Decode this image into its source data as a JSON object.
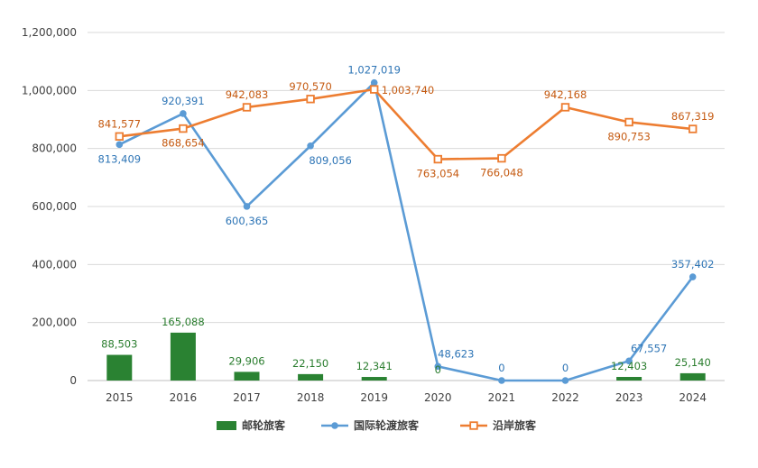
{
  "chart_data": {
    "type": "bar+line",
    "categories": [
      "2015",
      "2016",
      "2017",
      "2018",
      "2019",
      "2020",
      "2021",
      "2022",
      "2023",
      "2024"
    ],
    "ylim": [
      0,
      1200000
    ],
    "yticks": [
      0,
      200000,
      400000,
      600000,
      800000,
      1000000,
      1200000
    ],
    "ytick_labels": [
      "0",
      "200,000",
      "400,000",
      "600,000",
      "800,000",
      "1,000,000",
      "1,200,000"
    ],
    "grid": "horizontal",
    "legend_position": "bottom",
    "colors": {
      "bar": "#2a8232",
      "line1": "#5b9bd5",
      "line2": "#ed7d31",
      "label1": "#2e75b6",
      "label2": "#c55a11",
      "label_bar": "#2a7d2e"
    },
    "series": [
      {
        "name": "邮轮旅客",
        "type": "bar",
        "values": [
          88503,
          165088,
          29906,
          22150,
          12341,
          0,
          0,
          0,
          12403,
          25140
        ],
        "labels": [
          "88,503",
          "165,088",
          "29,906",
          "22,150",
          "12,341",
          "0",
          "",
          "",
          "12,403",
          "25,140"
        ]
      },
      {
        "name": "国际轮渡旅客",
        "type": "line",
        "values": [
          813409,
          920391,
          600365,
          809056,
          1027019,
          48623,
          0,
          0,
          67557,
          357402
        ],
        "labels": [
          "813,409",
          "920,391",
          "600,365",
          "809,056",
          "1,027,019",
          "48,623",
          "0",
          "0",
          "67,557",
          "357,402"
        ]
      },
      {
        "name": "沿岸旅客",
        "type": "line",
        "values": [
          841577,
          868654,
          942083,
          970570,
          1003740,
          763054,
          766048,
          942168,
          890753,
          867319
        ],
        "labels": [
          "841,577",
          "868,654",
          "942,083",
          "970,570",
          "1,003,740",
          "763,054",
          "766,048",
          "942,168",
          "890,753",
          "867,319"
        ]
      }
    ]
  }
}
